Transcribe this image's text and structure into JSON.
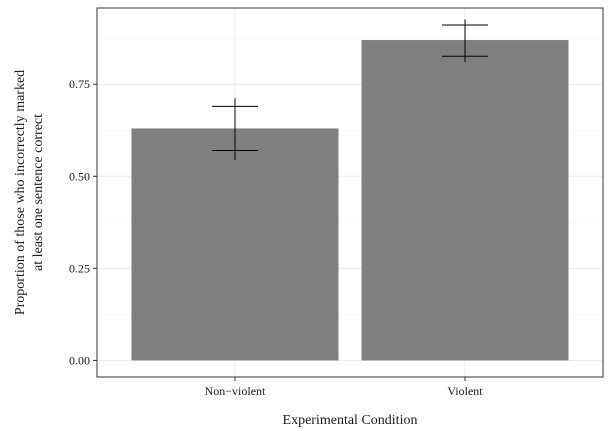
{
  "chart_data": {
    "type": "bar",
    "categories": [
      "Non−violent",
      "Violent"
    ],
    "values": [
      0.63,
      0.87
    ],
    "error_bars": [
      {
        "lower": 0.57,
        "upper": 0.69,
        "whisker_min": 0.545,
        "whisker_max": 0.712
      },
      {
        "lower": 0.826,
        "upper": 0.911,
        "whisker_min": 0.81,
        "whisker_max": 0.926
      }
    ],
    "xlabel": "Experimental Condition",
    "ylabel_lines": [
      "Proportion of those who incorrectly marked",
      "at least one sentence correct"
    ],
    "ylim": [
      -0.045,
      0.957
    ],
    "yticks": [
      0.0,
      0.25,
      0.5,
      0.75
    ],
    "ytick_labels": [
      "0.00",
      "0.25",
      "0.50",
      "0.75"
    ],
    "grid": true,
    "bar_color": "#7f7f7f"
  }
}
